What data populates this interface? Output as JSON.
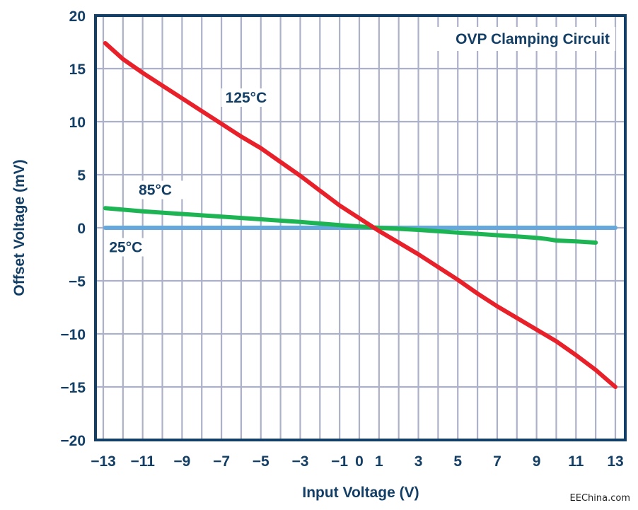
{
  "chart_data": {
    "type": "line",
    "title": "",
    "annotation": "OVP Clamping Circuit",
    "xlabel": "Input Voltage (V)",
    "ylabel": "Offset Voltage (mV)",
    "xlim": [
      -13,
      13
    ],
    "ylim": [
      -20,
      20
    ],
    "grid": true,
    "x_grid_step": 1,
    "y_grid_step": 5,
    "x_ticks": [
      -13,
      -11,
      -9,
      -7,
      -5,
      -3,
      -1,
      0,
      1,
      3,
      5,
      7,
      9,
      11,
      13
    ],
    "x_tick_labels": [
      "−13",
      "−11",
      "−9",
      "−7",
      "−5",
      "−3",
      "−1",
      "0",
      "1",
      "3",
      "5",
      "7",
      "9",
      "11",
      "13"
    ],
    "y_ticks": [
      20,
      15,
      10,
      5,
      0,
      -5,
      -10,
      -15,
      -20
    ],
    "y_tick_labels": [
      "20",
      "15",
      "10",
      "5",
      "0",
      "−5",
      "−10",
      "−15",
      "−20"
    ],
    "series": [
      {
        "name": "125°C",
        "color": "#e8202a",
        "x": [
          -12.9,
          -12,
          -11,
          -10,
          -9,
          -8,
          -7,
          -6,
          -5,
          -4,
          -3,
          -2,
          -1,
          0,
          1,
          2,
          3,
          4,
          5,
          6,
          7,
          8,
          9,
          10,
          11,
          12,
          13
        ],
        "y": [
          17.4,
          15.9,
          14.6,
          13.4,
          12.2,
          11.0,
          9.8,
          8.6,
          7.5,
          6.2,
          4.9,
          3.5,
          2.1,
          0.9,
          -0.3,
          -1.4,
          -2.5,
          -3.7,
          -4.9,
          -6.2,
          -7.4,
          -8.5,
          -9.6,
          -10.7,
          -12.0,
          -13.4,
          -15.0
        ]
      },
      {
        "name": "85°C",
        "color": "#1db554",
        "x": [
          -12.9,
          -11,
          -9,
          -7,
          -5,
          -3,
          -1,
          1,
          3,
          5,
          7,
          8,
          9,
          9.5,
          10,
          11,
          12
        ],
        "y": [
          1.85,
          1.55,
          1.3,
          1.05,
          0.8,
          0.55,
          0.25,
          0.0,
          -0.2,
          -0.45,
          -0.7,
          -0.82,
          -0.95,
          -1.05,
          -1.2,
          -1.28,
          -1.4
        ]
      },
      {
        "name": "25°C",
        "color": "#65a8dd",
        "x": [
          -12.9,
          13
        ],
        "y": [
          0,
          0
        ]
      }
    ],
    "series_label_positions": [
      {
        "name": "125°C",
        "x": -6.8,
        "y": 11.8
      },
      {
        "name": "85°C",
        "x": -11.2,
        "y": 3.1
      },
      {
        "name": "25°C",
        "x": -12.7,
        "y": -2.3
      }
    ]
  },
  "watermark": "EEChina.com"
}
